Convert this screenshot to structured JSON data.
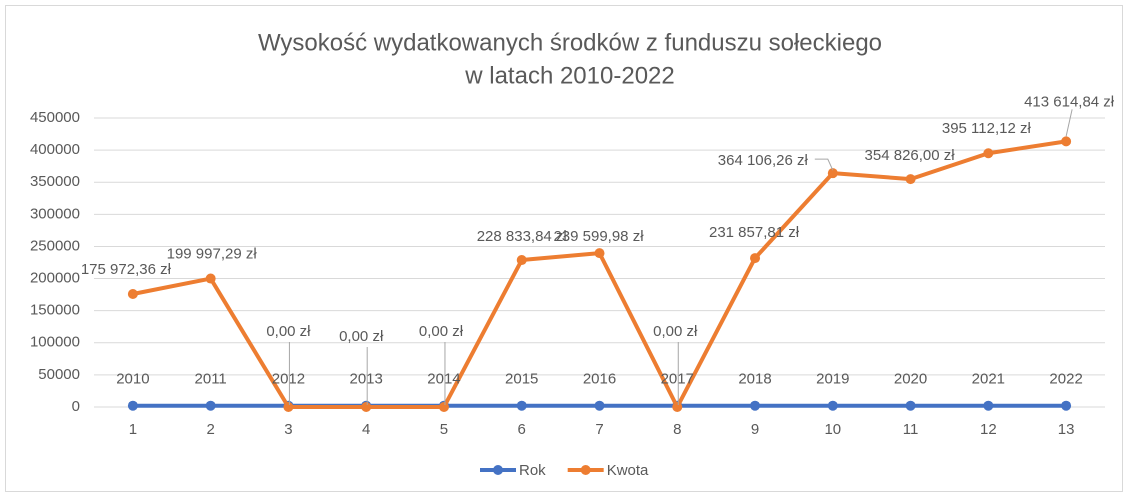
{
  "chart_data": {
    "type": "line",
    "title": [
      "Wysokość wydatkowanych środków z funduszu sołeckiego",
      "w latach 2010-2022"
    ],
    "categories": [
      "1",
      "2",
      "3",
      "4",
      "5",
      "6",
      "7",
      "8",
      "9",
      "10",
      "11",
      "12",
      "13"
    ],
    "series": [
      {
        "name": "Rok",
        "color": "#4472c4",
        "values": [
          2010,
          2011,
          2012,
          2013,
          2014,
          2015,
          2016,
          2017,
          2018,
          2019,
          2020,
          2021,
          2022
        ]
      },
      {
        "name": "Kwota",
        "color": "#ed7d31",
        "values": [
          175972.36,
          199997.29,
          0,
          0,
          0,
          228833.84,
          239599.98,
          0,
          231857.81,
          364106.26,
          354826.0,
          395112.12,
          413614.84
        ],
        "value_labels": [
          "175 972,36 zł",
          "199 997,29 zł",
          "0,00 zł",
          "0,00 zł",
          "0,00 zł",
          "228 833,84 zł",
          "239 599,98 zł",
          "0,00 zł",
          "231 857,81 zł",
          "364 106,26 zł",
          "354 826,00 zł",
          "395 112,12 zł",
          "413 614,84 zł"
        ]
      }
    ],
    "ylim": [
      0,
      450000
    ],
    "yticks": [
      0,
      50000,
      100000,
      150000,
      200000,
      250000,
      300000,
      350000,
      400000,
      450000
    ],
    "grid": true,
    "legend": "bottom"
  }
}
